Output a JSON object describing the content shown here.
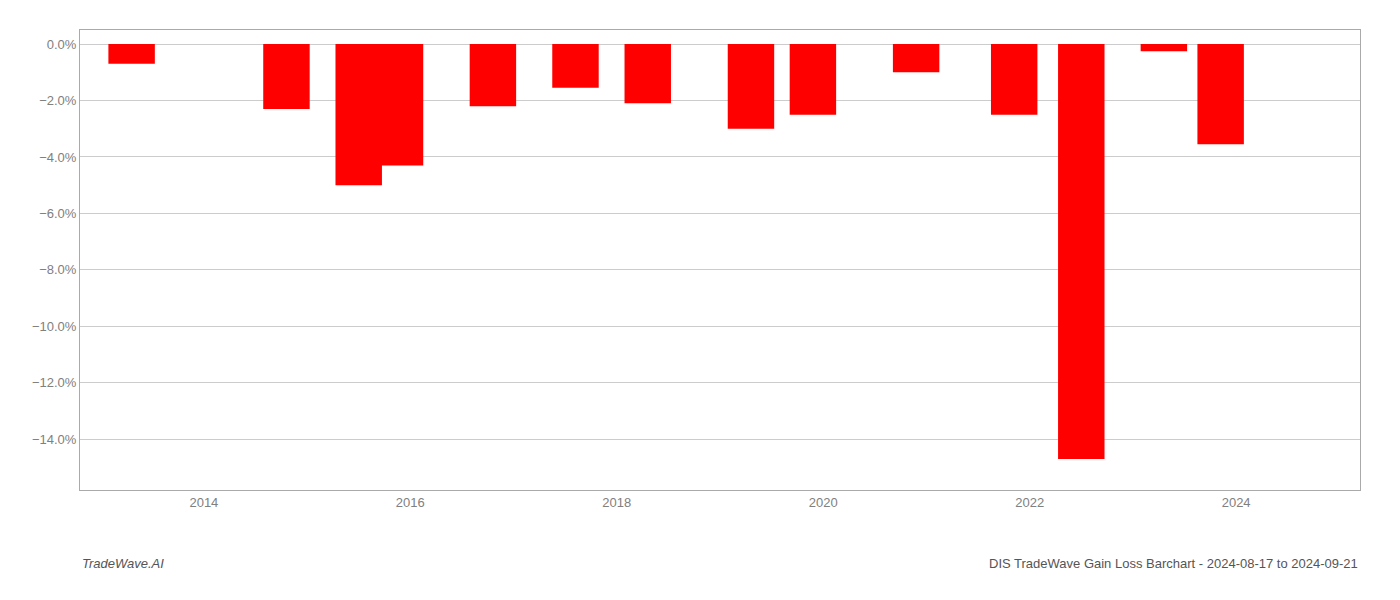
{
  "chart_data": {
    "type": "bar",
    "title": "DIS TradeWave Gain Loss Barchart - 2024-08-17 to 2024-09-21",
    "annotations": [
      "TradeWave.AI"
    ],
    "x": [
      2013.3,
      2014.8,
      2015.5,
      2015.9,
      2016.8,
      2017.6,
      2018.3,
      2019.3,
      2019.9,
      2020.9,
      2021.85,
      2022.5,
      2023.3,
      2023.85
    ],
    "values": [
      -0.7,
      -2.3,
      -5.0,
      -4.3,
      -2.2,
      -1.55,
      -2.1,
      -3.0,
      -2.5,
      -1.0,
      -2.5,
      -14.7,
      -0.25,
      -3.55
    ],
    "color": "#ff0000",
    "xlim": [
      2012.8,
      2025.2
    ],
    "xticks": [
      2014,
      2016,
      2018,
      2020,
      2022,
      2024
    ],
    "ylim": [
      -15.8,
      0.5
    ],
    "yticks": [
      {
        "value": 0.0,
        "label": "0.0%"
      },
      {
        "value": -2.0,
        "label": "−2.0%"
      },
      {
        "value": -4.0,
        "label": "−4.0%"
      },
      {
        "value": -6.0,
        "label": "−6.0%"
      },
      {
        "value": -8.0,
        "label": "−8.0%"
      },
      {
        "value": -10.0,
        "label": "−10.0%"
      },
      {
        "value": -12.0,
        "label": "−12.0%"
      },
      {
        "value": -14.0,
        "label": "−14.0%"
      }
    ],
    "grid": true
  }
}
